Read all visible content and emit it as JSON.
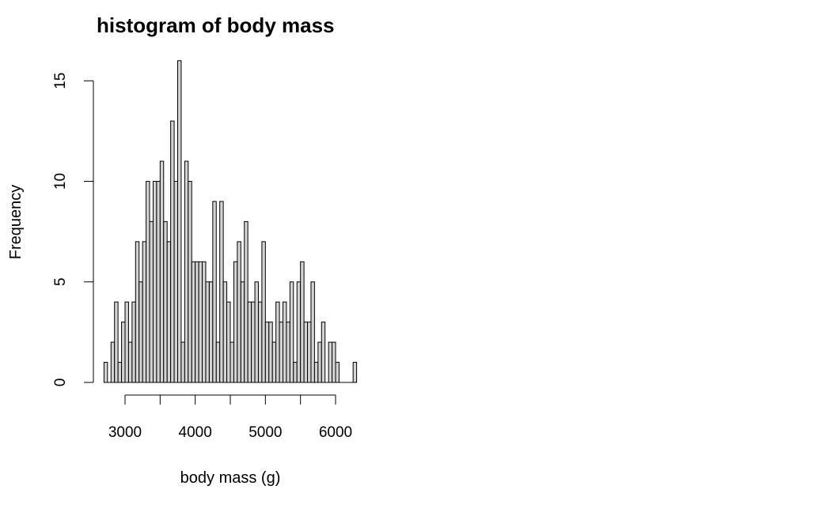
{
  "chart_data": {
    "type": "bar",
    "title": "histogram of body mass",
    "xlabel": "body mass (g)",
    "ylabel": "Frequency",
    "bin_width": 50,
    "x_ticks": [
      3000,
      4000,
      5000,
      6000
    ],
    "x_ticks_minor": [
      3500,
      4500,
      5500
    ],
    "y_ticks": [
      0,
      5,
      10,
      15
    ],
    "xlim": [
      2700,
      6300
    ],
    "ylim": [
      0,
      16
    ],
    "grid": false,
    "bar_fill": "#d3d3d3",
    "bar_stroke": "#000000",
    "bins": [
      [
        2700,
        1
      ],
      [
        2750,
        0
      ],
      [
        2800,
        2
      ],
      [
        2850,
        4
      ],
      [
        2900,
        1
      ],
      [
        2950,
        3
      ],
      [
        3000,
        4
      ],
      [
        3050,
        2
      ],
      [
        3100,
        4
      ],
      [
        3150,
        7
      ],
      [
        3200,
        5
      ],
      [
        3250,
        7
      ],
      [
        3300,
        10
      ],
      [
        3350,
        8
      ],
      [
        3400,
        10
      ],
      [
        3450,
        10
      ],
      [
        3500,
        11
      ],
      [
        3550,
        8
      ],
      [
        3600,
        7
      ],
      [
        3650,
        13
      ],
      [
        3700,
        10
      ],
      [
        3750,
        16
      ],
      [
        3800,
        2
      ],
      [
        3850,
        11
      ],
      [
        3900,
        10
      ],
      [
        3950,
        6
      ],
      [
        4000,
        6
      ],
      [
        4050,
        6
      ],
      [
        4100,
        6
      ],
      [
        4150,
        5
      ],
      [
        4200,
        5
      ],
      [
        4250,
        9
      ],
      [
        4300,
        2
      ],
      [
        4350,
        9
      ],
      [
        4400,
        5
      ],
      [
        4450,
        4
      ],
      [
        4500,
        2
      ],
      [
        4550,
        6
      ],
      [
        4600,
        7
      ],
      [
        4650,
        5
      ],
      [
        4700,
        8
      ],
      [
        4750,
        4
      ],
      [
        4800,
        4
      ],
      [
        4850,
        5
      ],
      [
        4900,
        4
      ],
      [
        4950,
        7
      ],
      [
        5000,
        3
      ],
      [
        5050,
        3
      ],
      [
        5100,
        2
      ],
      [
        5150,
        4
      ],
      [
        5200,
        3
      ],
      [
        5250,
        4
      ],
      [
        5300,
        3
      ],
      [
        5350,
        5
      ],
      [
        5400,
        1
      ],
      [
        5450,
        5
      ],
      [
        5500,
        6
      ],
      [
        5550,
        3
      ],
      [
        5600,
        3
      ],
      [
        5650,
        5
      ],
      [
        5700,
        1
      ],
      [
        5750,
        2
      ],
      [
        5800,
        3
      ],
      [
        5850,
        0
      ],
      [
        5900,
        2
      ],
      [
        5950,
        2
      ],
      [
        6000,
        1
      ],
      [
        6050,
        0
      ],
      [
        6100,
        0
      ],
      [
        6150,
        0
      ],
      [
        6200,
        0
      ],
      [
        6250,
        1
      ]
    ]
  }
}
